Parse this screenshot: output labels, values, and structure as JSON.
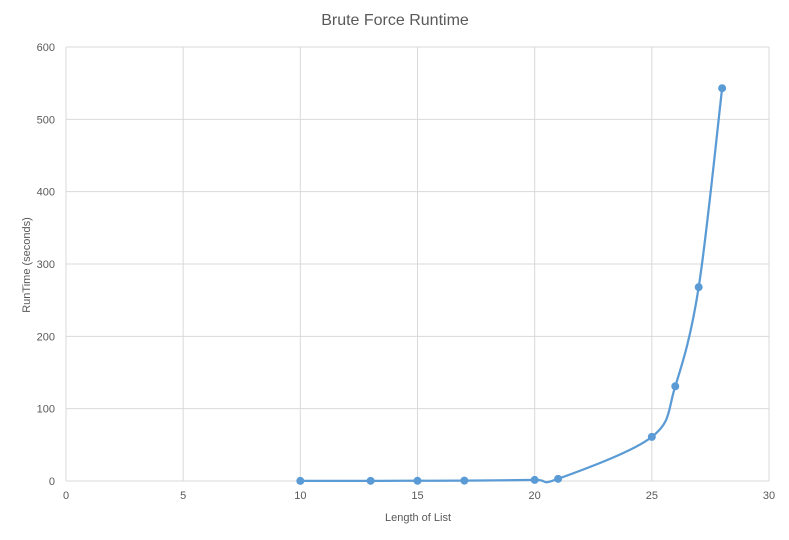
{
  "chart_data": {
    "type": "scatter",
    "title": "Brute Force Runtime",
    "xlabel": "Length of List",
    "ylabel": "RunTime (seconds)",
    "xlim": [
      0,
      30
    ],
    "ylim": [
      0,
      600
    ],
    "x_ticks": [
      0,
      5,
      10,
      15,
      20,
      25,
      30
    ],
    "y_ticks": [
      0,
      100,
      200,
      300,
      400,
      500,
      600
    ],
    "grid": true,
    "smooth_line": true,
    "legend": "none",
    "series": [
      {
        "color": "#5b9bd5",
        "x": [
          10,
          13,
          15,
          17,
          20,
          21,
          25,
          26,
          27,
          28
        ],
        "y": [
          0.1,
          0.2,
          0.3,
          0.5,
          1.5,
          3,
          61,
          131,
          268,
          543
        ]
      }
    ]
  }
}
